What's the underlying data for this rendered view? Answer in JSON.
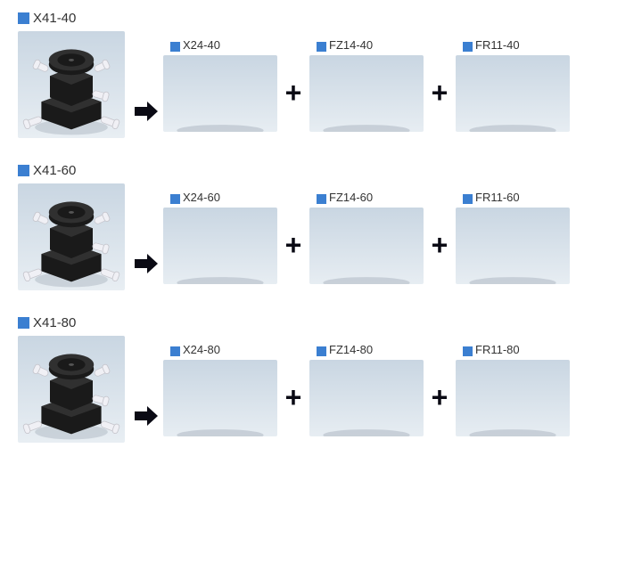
{
  "rows": [
    {
      "main_label": "X41-40",
      "components": [
        {
          "label": "X24-40"
        },
        {
          "label": "FZ14-40"
        },
        {
          "label": "FR11-40"
        }
      ]
    },
    {
      "main_label": "X41-60",
      "components": [
        {
          "label": "X24-60"
        },
        {
          "label": "FZ14-60"
        },
        {
          "label": "FR11-60"
        }
      ]
    },
    {
      "main_label": "X41-80",
      "components": [
        {
          "label": "X24-80"
        },
        {
          "label": "FZ14-80"
        },
        {
          "label": "FR11-80"
        }
      ]
    }
  ],
  "style": {
    "bullet_color": "#3b7fd1",
    "label_color": "#333333",
    "operator_color": "#0a0a14",
    "bg_gradient_top": "#c9d6e2",
    "bg_gradient_bot": "#e8eef3",
    "part_body": "#1a1a1a",
    "part_top": "#303030",
    "knob_light": "#f0f0f5",
    "knob_shadow": "#c5c5cc"
  }
}
